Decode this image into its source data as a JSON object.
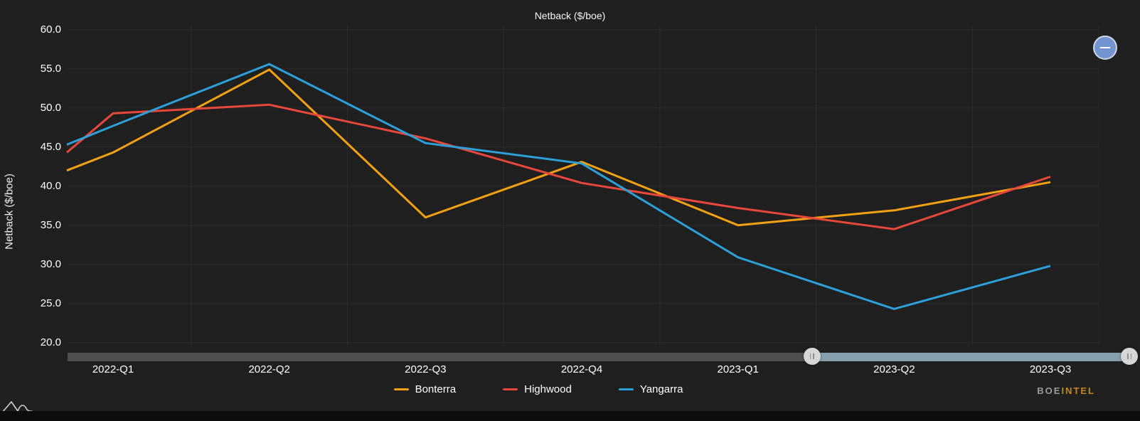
{
  "title": "Netback ($/boe)",
  "y_axis": {
    "title": "Netback ($/boe)"
  },
  "chart_data": {
    "type": "line",
    "title": "Netback ($/boe)",
    "ylabel": "Netback ($/boe)",
    "xlabel": "",
    "ylim": [
      20,
      60
    ],
    "y_tick_step": 5,
    "y_tick_format_decimals": 1,
    "grid": "faint horizontal and vertical gridlines on dark background",
    "legend_position": "bottom",
    "categories": [
      "2022-Q1",
      "2022-Q2",
      "2022-Q3",
      "2022-Q4",
      "2023-Q1",
      "2023-Q2",
      "2023-Q3"
    ],
    "series": [
      {
        "name": "Bonterra",
        "color": "#f2a113",
        "values": [
          44.3,
          54.9,
          36.0,
          43.1,
          35.0,
          36.9,
          40.5
        ],
        "left_edge_entry_value": 42.0
      },
      {
        "name": "Highwood",
        "color": "#e8473b",
        "values": [
          49.3,
          50.4,
          46.1,
          40.4,
          37.2,
          34.5,
          41.2
        ],
        "left_edge_entry_value": 44.3
      },
      {
        "name": "Yangarra",
        "color": "#2d9fd9",
        "values": [
          47.7,
          55.6,
          45.5,
          42.9,
          30.9,
          24.3,
          29.8
        ],
        "left_edge_entry_value": 45.3
      }
    ]
  },
  "scrollbar": {
    "selection_start_pct": 70,
    "selection_end_pct": 100,
    "track_color": "#4f4f4f",
    "selected_color": "#87a0ae",
    "grip_icon": "||"
  },
  "controls": {
    "zoom_out_icon": "minus"
  },
  "branding": {
    "boe": "BOE",
    "intel": "INTEL"
  },
  "colors": {
    "background": "#1f1f1f",
    "grid": "rgba(255,255,255,0.05)",
    "tick_text": "#ffffff"
  }
}
